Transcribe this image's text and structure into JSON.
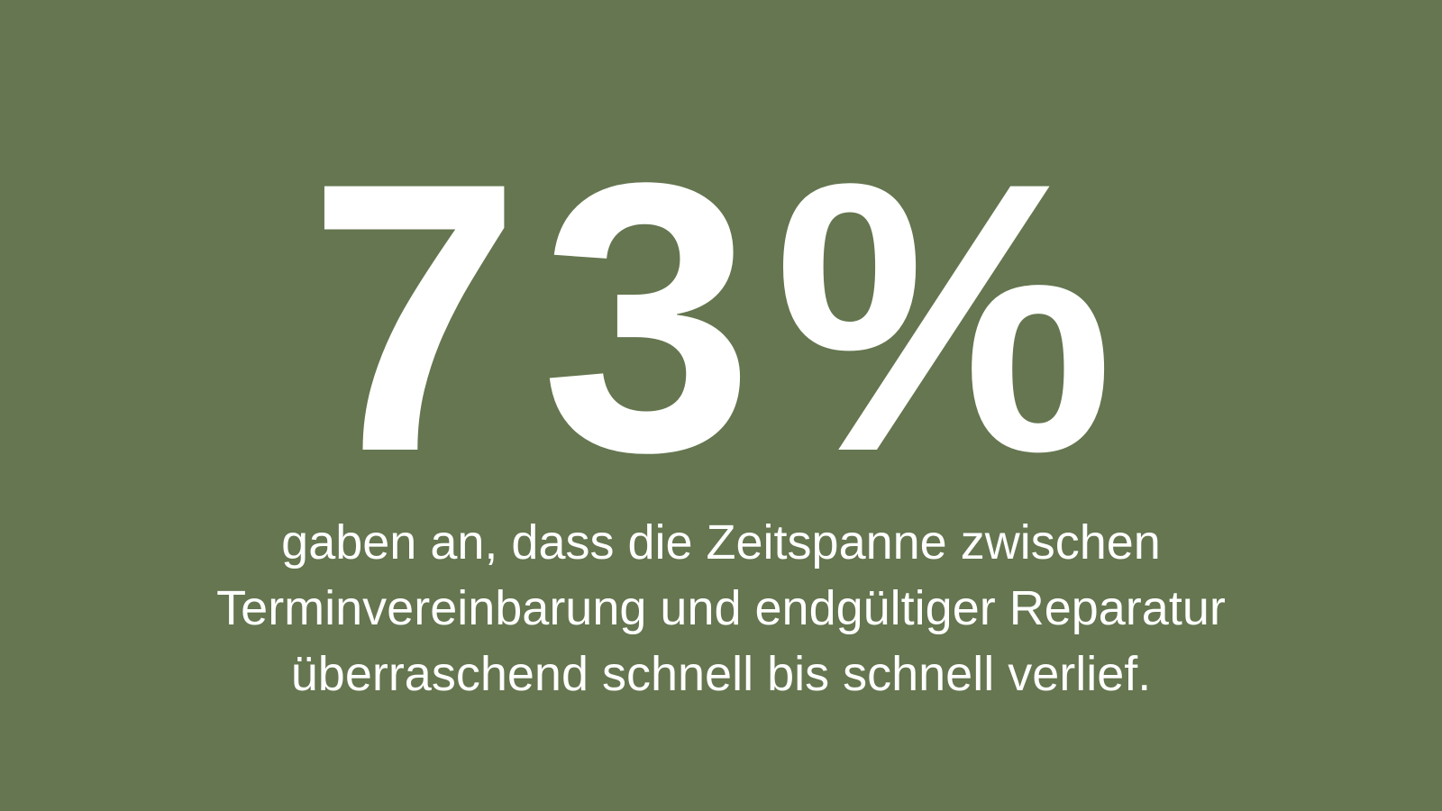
{
  "background_color": "#657650",
  "text_color": "#ffffff",
  "stat": "73%",
  "caption_lines": [
    "gaben an, dass die Zeitspanne zwischen",
    "Terminvereinbarung und endgültiger Reparatur",
    "überraschend schnell bis schnell verlief."
  ]
}
